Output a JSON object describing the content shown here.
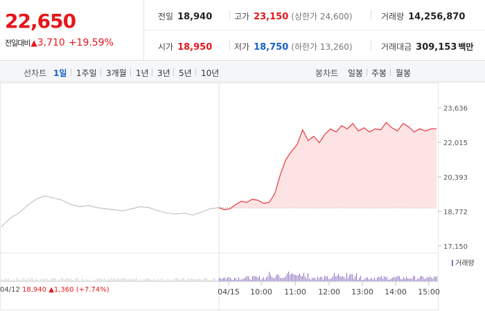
{
  "price": {
    "current": "22,650",
    "change_label": "전일대비",
    "change_arrow": "▲",
    "change_value": "3,710",
    "change_pct": "+19.59%"
  },
  "stats": {
    "prev_close": {
      "label": "전일",
      "value": "18,940"
    },
    "high": {
      "label": "고가",
      "value": "23,150",
      "extra": "(상한가 24,600)"
    },
    "volume": {
      "label": "거래량",
      "value": "14,256,870"
    },
    "open": {
      "label": "시가",
      "value": "18,950"
    },
    "low": {
      "label": "저가",
      "value": "18,750",
      "extra": "(하한가 13,260)"
    },
    "amount": {
      "label": "거래대금",
      "value": "309,153",
      "unit": "백만"
    }
  },
  "toolbar": {
    "line_label": "선차트",
    "line_periods": [
      "1일",
      "1주일",
      "3개월",
      "1년",
      "3년",
      "5년",
      "10년"
    ],
    "active_period": "1일",
    "candle_label": "봉차트",
    "candle_periods": [
      "일봉",
      "주봉",
      "월봉"
    ]
  },
  "footer": {
    "prev_date": "04/12",
    "prev_close": "18,940",
    "prev_change": "▲1,360",
    "prev_pct": "(+7.74%)"
  },
  "colors": {
    "up": "#e5161b",
    "down": "#1561c9",
    "today_line": "#e8424a",
    "today_fill": "#fde3e4",
    "prev_line": "#c4c4c4",
    "volume_today": "#8a6fbe",
    "volume_prev": "#cfcfcf"
  },
  "chart_data": {
    "type": "line",
    "y_ticks": [
      23636,
      22015,
      20393,
      18772,
      17150
    ],
    "ylim": [
      17150,
      23636
    ],
    "prev_close_line": 18940,
    "x_ticks": [
      "04/15",
      "10:00",
      "11:00",
      "12:00",
      "13:00",
      "14:00",
      "15:00"
    ],
    "volume_legend": "거래량",
    "series": [
      {
        "values": [
          18050,
          18450,
          18700,
          19050,
          19350,
          19500,
          19400,
          19300,
          19100,
          19000,
          19050,
          18950,
          18900,
          18850,
          18800,
          18900,
          19000,
          18950,
          18800,
          18700,
          18650,
          18700,
          18600,
          18750,
          18900,
          18950
        ]
      },
      {
        "values": [
          18950,
          18850,
          18900,
          19100,
          19250,
          19200,
          19350,
          19300,
          19150,
          19200,
          19600,
          20500,
          21200,
          21600,
          21900,
          22600,
          22100,
          22300,
          22000,
          22400,
          22650,
          22500,
          22800,
          22650,
          22900,
          22550,
          22700,
          22500,
          22650,
          22600,
          22950,
          22700,
          22550,
          22900,
          22750,
          22500,
          22650,
          22550,
          22650,
          22650
        ]
      }
    ]
  }
}
